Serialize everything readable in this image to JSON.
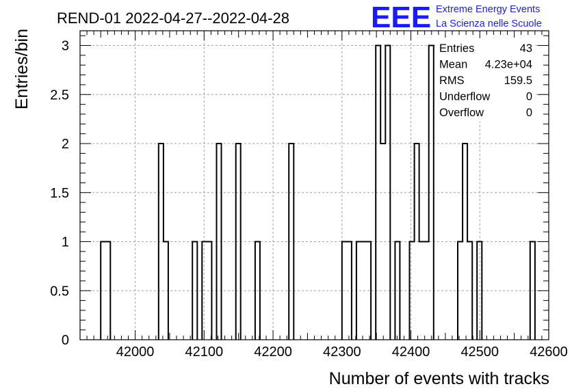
{
  "chart_data": {
    "type": "histogram",
    "title": "REND-01 2022-04-27--2022-04-28",
    "xlabel": "Number of events with tracks",
    "ylabel": "Entries/bin",
    "xlim": [
      41920,
      42600
    ],
    "ylim": [
      0,
      3.15
    ],
    "xticks": [
      42000,
      42100,
      42200,
      42300,
      42400,
      42500,
      42600
    ],
    "yticks": [
      0,
      0.5,
      1,
      1.5,
      2,
      2.5,
      3
    ],
    "ytick_labels": [
      "0",
      "0.5",
      "1",
      "1.5",
      "2",
      "2.5",
      "3"
    ],
    "grid": true,
    "bin_width": 7,
    "bins": [
      {
        "x": 41950,
        "count": 1
      },
      {
        "x": 41957,
        "count": 1
      },
      {
        "x": 42034,
        "count": 2
      },
      {
        "x": 42041,
        "count": 1
      },
      {
        "x": 42083,
        "count": 1
      },
      {
        "x": 42097,
        "count": 1
      },
      {
        "x": 42104,
        "count": 1
      },
      {
        "x": 42118,
        "count": 2
      },
      {
        "x": 42146,
        "count": 2
      },
      {
        "x": 42174,
        "count": 1
      },
      {
        "x": 42223,
        "count": 2
      },
      {
        "x": 42300,
        "count": 1
      },
      {
        "x": 42307,
        "count": 1
      },
      {
        "x": 42321,
        "count": 1
      },
      {
        "x": 42328,
        "count": 1
      },
      {
        "x": 42335,
        "count": 1
      },
      {
        "x": 42349,
        "count": 3
      },
      {
        "x": 42356,
        "count": 2
      },
      {
        "x": 42363,
        "count": 3
      },
      {
        "x": 42377,
        "count": 1
      },
      {
        "x": 42398,
        "count": 1
      },
      {
        "x": 42405,
        "count": 2
      },
      {
        "x": 42412,
        "count": 1
      },
      {
        "x": 42419,
        "count": 1
      },
      {
        "x": 42426,
        "count": 3
      },
      {
        "x": 42468,
        "count": 1
      },
      {
        "x": 42475,
        "count": 2
      },
      {
        "x": 42482,
        "count": 1
      },
      {
        "x": 42496,
        "count": 1
      },
      {
        "x": 42573,
        "count": 1
      }
    ],
    "stats": [
      {
        "label": "Entries",
        "value": "43"
      },
      {
        "label": "Mean",
        "value": "4.23e+04"
      },
      {
        "label": "RMS",
        "value": "159.5"
      },
      {
        "label": "Underflow",
        "value": "0"
      },
      {
        "label": "Overflow",
        "value": "0"
      }
    ],
    "line_color": "#000000",
    "grid_color": "#a0a0a0"
  },
  "logo": {
    "mark": "EEE",
    "line1": "Extreme Energy Events",
    "line2": "La Scienza nelle Scuole",
    "color": "#1a1aff"
  }
}
